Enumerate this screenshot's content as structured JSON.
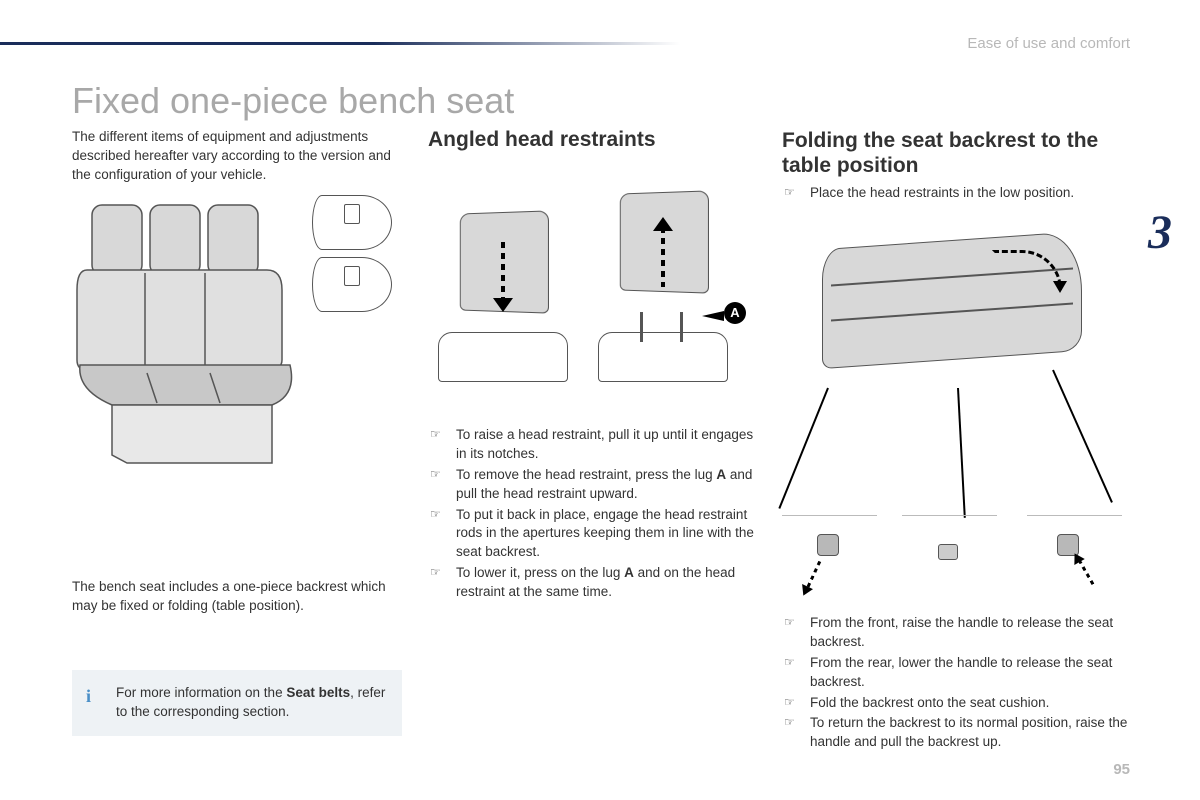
{
  "header": {
    "section_label": "Ease of use and comfort",
    "chapter_number": "3",
    "page_number": "95"
  },
  "main_title": "Fixed one-piece bench seat",
  "col1": {
    "intro": "The different items of equipment and adjustments described hereafter vary according to the version and the configuration of your vehicle.",
    "caption": "The bench seat includes a one-piece backrest which may be fixed or folding (table position).",
    "info_prefix": "For more information on the ",
    "info_bold": "Seat belts",
    "info_suffix": ", refer to the corresponding section."
  },
  "col2": {
    "title": "Angled head restraints",
    "label_a": "A",
    "items": [
      "To raise a head restraint, pull it up until it engages in its notches.",
      "To remove the head restraint, press the lug <b>A</b> and pull the head restraint upward.",
      "To put it back in place, engage the head restraint rods in the apertures keeping them in line with the seat backrest.",
      "To lower it, press on the lug <b>A</b> and on the head restraint at the same time."
    ]
  },
  "col3": {
    "title": "Folding the seat backrest to the table position",
    "first_item": "Place the head restraints in the low position.",
    "items": [
      "From the front, raise the handle to release the seat backrest.",
      "From the rear, lower the handle to release the seat backrest.",
      "Fold the backrest onto the seat cushion.",
      "To return the backrest to its normal position, raise the handle and pull the backrest up."
    ]
  },
  "colors": {
    "accent_dark": "#1a2d5a",
    "muted_text": "#b8b8b8",
    "body_text": "#333333",
    "figure_fill": "#d8d8d8",
    "info_bg": "#eef2f5",
    "info_icon": "#4a8fc7"
  }
}
